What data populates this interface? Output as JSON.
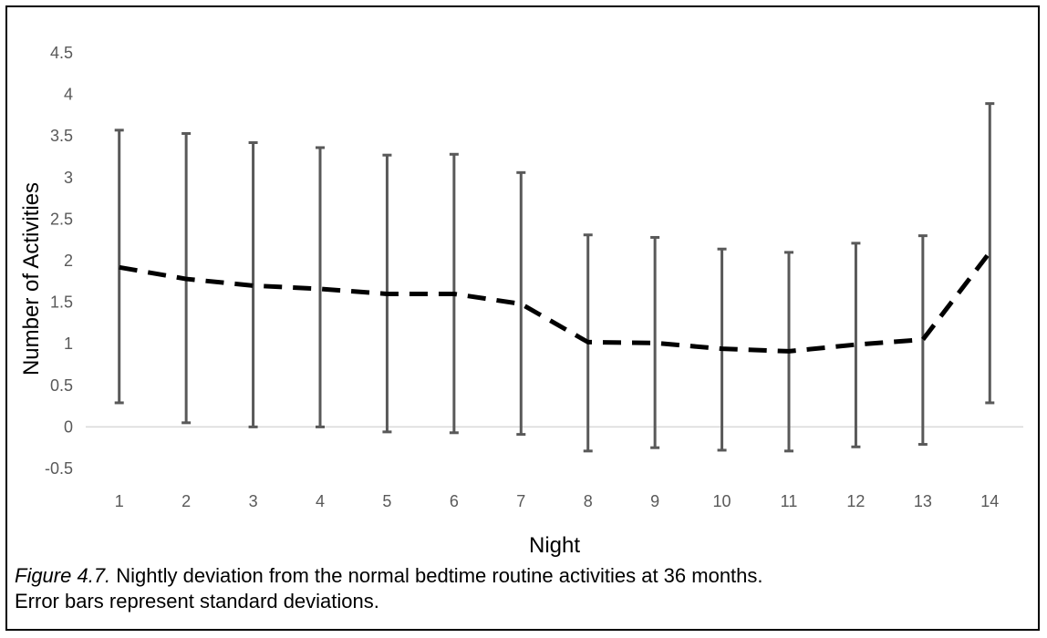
{
  "chart_data": {
    "type": "line",
    "title": "",
    "xlabel": "Night",
    "ylabel": "Number of Activities",
    "categories": [
      "1",
      "2",
      "3",
      "4",
      "5",
      "6",
      "7",
      "8",
      "9",
      "10",
      "11",
      "12",
      "13",
      "14"
    ],
    "series": [
      {
        "values": [
          1.92,
          1.78,
          1.7,
          1.66,
          1.6,
          1.6,
          1.48,
          1.02,
          1.01,
          0.94,
          0.91,
          0.99,
          1.05,
          2.1
        ],
        "error_upper": [
          3.57,
          3.53,
          3.42,
          3.36,
          3.27,
          3.28,
          3.06,
          2.31,
          2.28,
          2.14,
          2.1,
          2.21,
          2.3,
          3.89
        ],
        "error_lower": [
          0.29,
          0.05,
          0.0,
          0.0,
          -0.06,
          -0.07,
          -0.09,
          -0.29,
          -0.25,
          -0.28,
          -0.29,
          -0.24,
          -0.21,
          0.29
        ],
        "line_style": "dashed",
        "line_color": "#000000",
        "error_bar_color": "#595959"
      }
    ],
    "ylim": [
      -0.5,
      4.5
    ],
    "yticks": [
      "-0.5",
      "0",
      "0.5",
      "1",
      "1.5",
      "2",
      "2.5",
      "3",
      "3.5",
      "4",
      "4.5"
    ],
    "grid": false,
    "legend": "none"
  },
  "caption": {
    "label": "Figure 4.7.",
    "text_line1": "  Nightly deviation from the normal bedtime routine activities at 36 months.",
    "text_line2": "Error bars represent standard deviations."
  }
}
